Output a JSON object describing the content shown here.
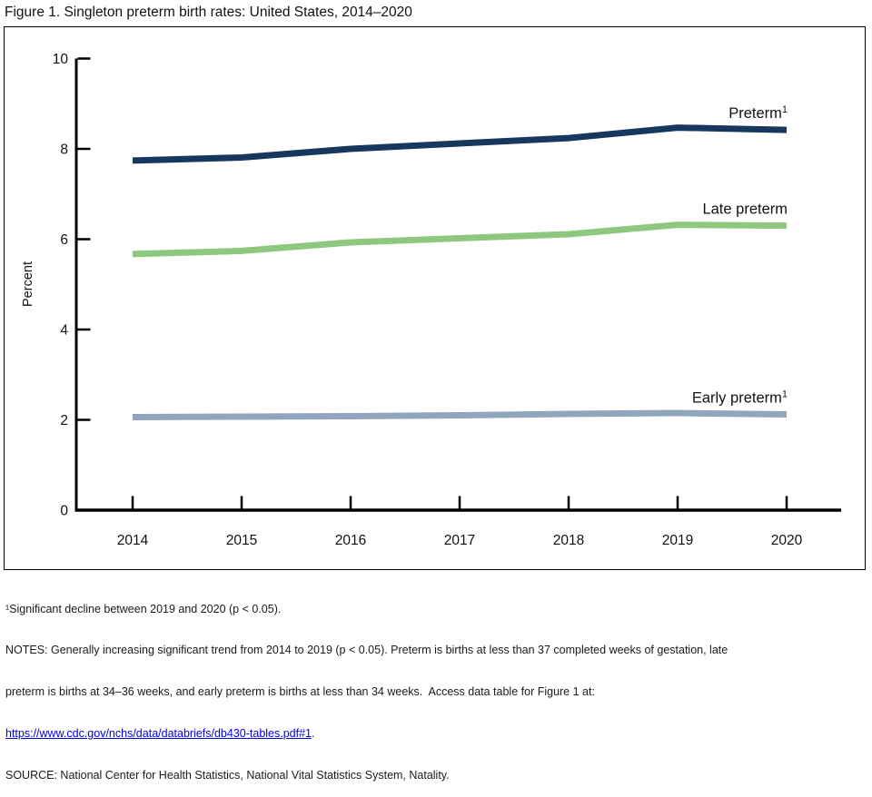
{
  "figure": {
    "title": "Figure 1. Singleton preterm birth rates: United States, 2014–2020"
  },
  "chart_data": {
    "type": "line",
    "title": "Figure 1. Singleton preterm birth rates: United States, 2014–2020",
    "xlabel": "",
    "ylabel": "Percent",
    "ylim": [
      0,
      10
    ],
    "yticks": [
      0,
      2,
      4,
      6,
      8,
      10
    ],
    "categories": [
      "2014",
      "2015",
      "2016",
      "2017",
      "2018",
      "2019",
      "2020"
    ],
    "grid": false,
    "legend_position": "labels-at-line-ends",
    "series": [
      {
        "name": "Preterm",
        "label_sup": "1",
        "color": "#17375E",
        "values": [
          7.74,
          7.81,
          8.0,
          8.12,
          8.24,
          8.47,
          8.42
        ]
      },
      {
        "name": "Late preterm",
        "label_sup": "",
        "color": "#8DC87E",
        "values": [
          5.67,
          5.74,
          5.93,
          6.02,
          6.11,
          6.32,
          6.3
        ]
      },
      {
        "name": "Early preterm",
        "label_sup": "1",
        "color": "#92A5BE",
        "values": [
          2.06,
          2.07,
          2.08,
          2.1,
          2.13,
          2.15,
          2.12
        ]
      }
    ]
  },
  "footnotes": {
    "line1": "¹Significant decline between 2019 and 2020 (p < 0.05).",
    "notes_line1": "NOTES: Generally increasing significant trend from 2014 to 2019 (p < 0.05). Preterm is births at less than 37 completed weeks of gestation, late",
    "notes_line2": "preterm is births at 34–36 weeks, and early preterm is births at less than 34 weeks.  Access data table for Figure 1 at:",
    "link_text": "https://www.cdc.gov/nchs/data/databriefs/db430-tables.pdf#1",
    "link_suffix": ".",
    "source": "SOURCE: National Center for Health Statistics, National Vital Statistics System, Natality."
  }
}
